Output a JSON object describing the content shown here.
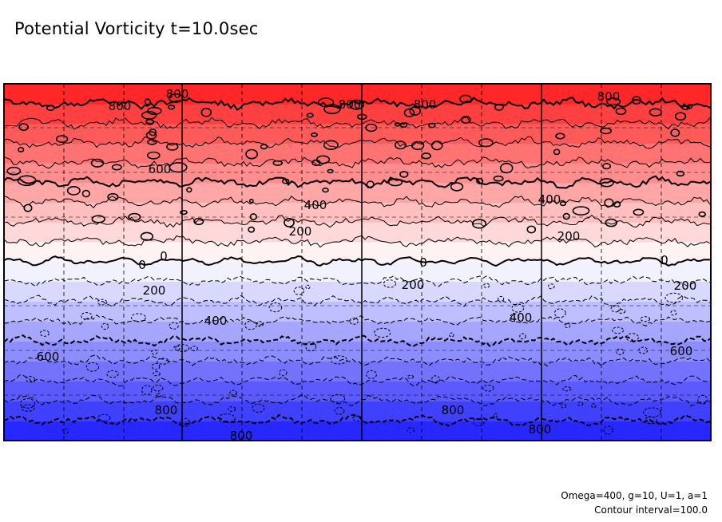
{
  "chart_data": {
    "type": "heatmap",
    "title": "Potential Vorticity t=10.0sec",
    "field_range": [
      -900,
      900
    ],
    "contour_interval": 100,
    "positive_style": "solid",
    "negative_style": "dashed",
    "colors": {
      "positive_max": "#ff1a1a",
      "zero": "#ffffff",
      "negative_max": "#1a1aff",
      "contour": "#000000",
      "grid": "#000000"
    },
    "contour_labels": [
      {
        "text": "800",
        "value": 800
      },
      {
        "text": "800",
        "value": 800
      },
      {
        "text": "800",
        "value": 800
      },
      {
        "text": "800",
        "value": 800
      },
      {
        "text": "800",
        "value": 800
      },
      {
        "text": "600",
        "value": 600
      },
      {
        "text": "400",
        "value": 400
      },
      {
        "text": "400",
        "value": 400
      },
      {
        "text": "200",
        "value": 200
      },
      {
        "text": "200",
        "value": 200
      },
      {
        "text": "0",
        "value": 0
      },
      {
        "text": "0",
        "value": 0
      },
      {
        "text": "0",
        "value": 0
      },
      {
        "text": "0",
        "value": 0
      },
      {
        "text": "200",
        "value": -200
      },
      {
        "text": "200",
        "value": -200
      },
      {
        "text": "200",
        "value": -200
      },
      {
        "text": "400",
        "value": -400
      },
      {
        "text": "400",
        "value": -400
      },
      {
        "text": "600",
        "value": -600
      },
      {
        "text": "600",
        "value": -600
      },
      {
        "text": "800",
        "value": -800
      },
      {
        "text": "800",
        "value": -800
      },
      {
        "text": "800",
        "value": -800
      },
      {
        "text": "800",
        "value": -800
      }
    ],
    "grid": {
      "dashed_lines": true
    },
    "annotations": [
      "Omega=400, g=10, U=1, a=1",
      "Contour interval=100.0"
    ]
  }
}
